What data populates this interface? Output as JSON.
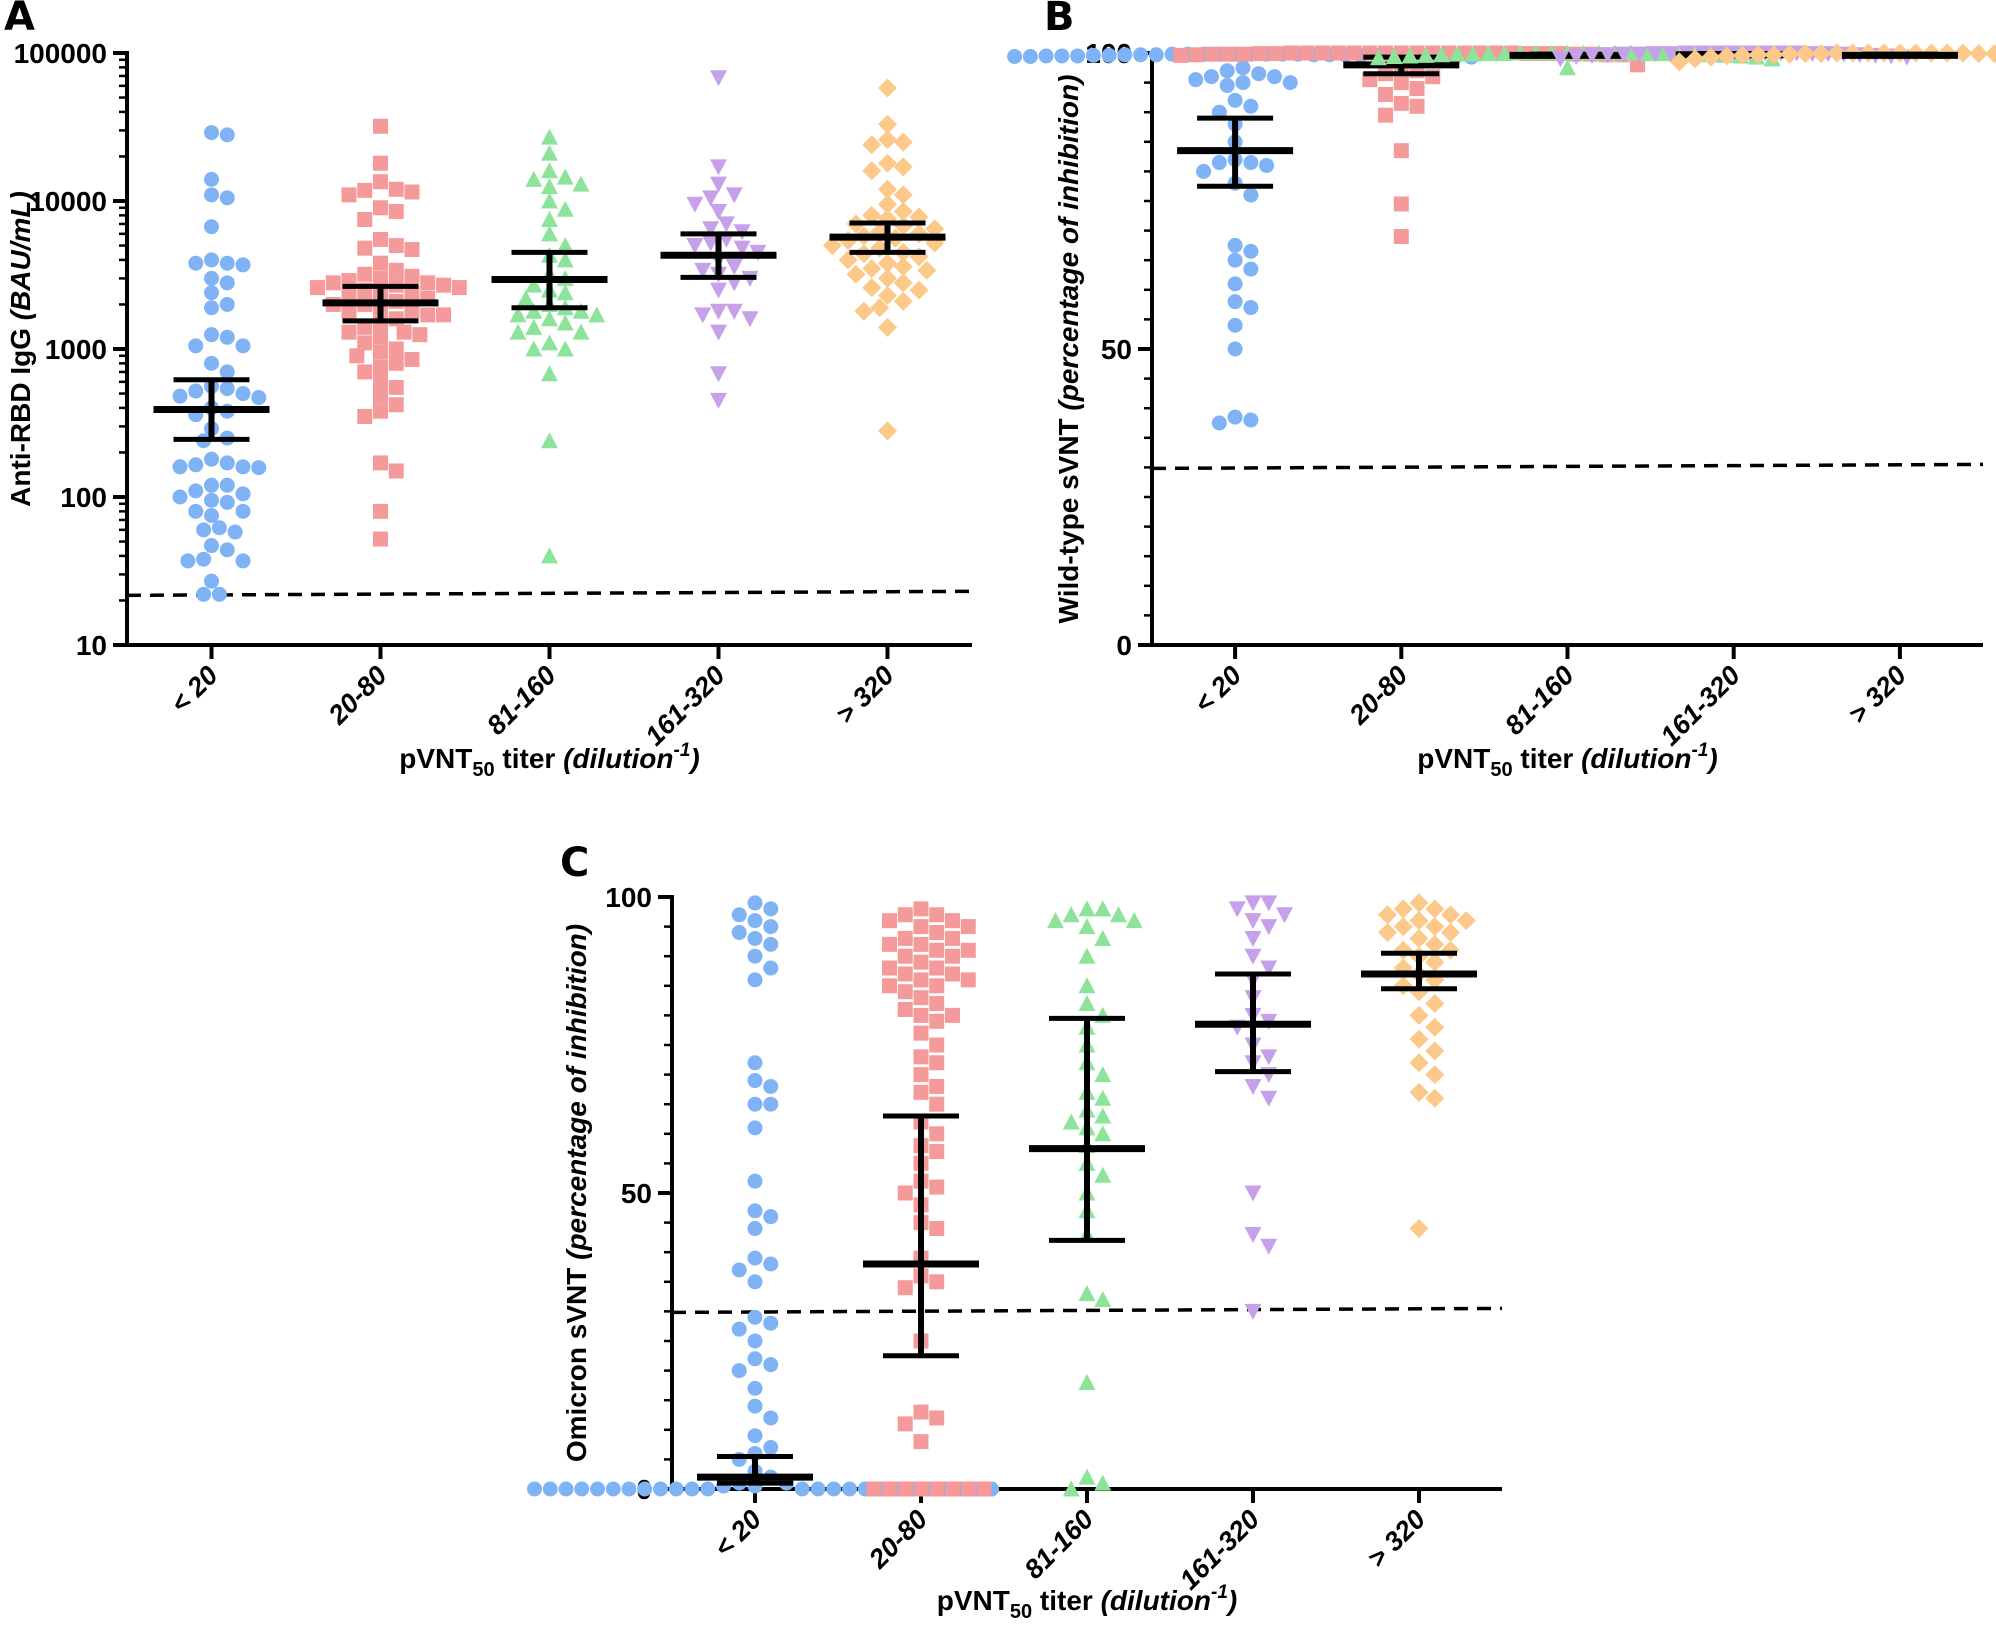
{
  "chart_data": [
    {
      "type": "scatter",
      "panel": "A",
      "ylabel_main": "Anti-RBD IgG ",
      "ylabel_italic": "(BAU/mL)",
      "xlabel": {
        "main": "pVNT",
        "sub": "50",
        "mid": " titer ",
        "italic": "(dilution",
        "sup": "-1",
        "close": ")"
      },
      "categories": [
        "< 20",
        "20-80",
        "81-160",
        "161-320",
        "> 320"
      ],
      "yscale": "log",
      "ylim": [
        10,
        100000
      ],
      "yticks": [
        "10",
        "100",
        "1000",
        "10000",
        "100000"
      ],
      "cutoff": 22,
      "grid": false,
      "series": [
        {
          "color": "#7fb3f5",
          "marker": "circle",
          "median": 390,
          "ci": [
            245,
            620
          ],
          "values": [
            29000,
            28000,
            14000,
            11000,
            10500,
            6700,
            4000,
            3800,
            3800,
            3700,
            3000,
            2800,
            2400,
            2000,
            1900,
            1250,
            1200,
            1050,
            1050,
            800,
            700,
            560,
            540,
            520,
            500,
            480,
            470,
            400,
            380,
            360,
            290,
            250,
            240,
            180,
            170,
            165,
            160,
            160,
            158,
            120,
            120,
            110,
            105,
            100,
            95,
            92,
            80,
            80,
            75,
            62,
            60,
            58,
            47,
            44,
            38,
            37,
            37,
            27,
            22,
            22
          ]
        },
        {
          "color": "#f59a9a",
          "marker": "square",
          "median": 2050,
          "ci": [
            1550,
            2650
          ],
          "values": [
            32000,
            18000,
            13500,
            12000,
            11800,
            11500,
            11000,
            9000,
            8500,
            7500,
            5500,
            5000,
            4800,
            4700,
            3800,
            3400,
            3200,
            3100,
            3000,
            2900,
            2800,
            2800,
            2700,
            2700,
            2600,
            2600,
            2500,
            2400,
            2400,
            2300,
            2200,
            2100,
            2000,
            2000,
            1900,
            1800,
            1800,
            1700,
            1700,
            1600,
            1500,
            1400,
            1300,
            1300,
            1250,
            1200,
            1100,
            1000,
            950,
            900,
            850,
            800,
            750,
            700,
            600,
            550,
            480,
            420,
            380,
            350,
            170,
            150,
            80,
            52
          ]
        },
        {
          "color": "#8ee39a",
          "marker": "triangle-up",
          "median": 2950,
          "ci": [
            1900,
            4500
          ],
          "values": [
            27000,
            21000,
            16000,
            14500,
            14000,
            13000,
            12500,
            10000,
            8800,
            7500,
            6000,
            5000,
            4300,
            4000,
            3200,
            3000,
            2700,
            2500,
            2400,
            2200,
            2000,
            1900,
            1800,
            1800,
            1700,
            1700,
            1600,
            1500,
            1400,
            1300,
            1300,
            1100,
            1000,
            1000,
            680,
            240,
            40
          ]
        },
        {
          "color": "#c7a0ea",
          "marker": "triangle-down",
          "median": 4300,
          "ci": [
            3050,
            6000
          ],
          "values": [
            68000,
            17000,
            13000,
            11000,
            10500,
            9500,
            8500,
            7000,
            6500,
            6200,
            5500,
            5200,
            5000,
            4800,
            4500,
            4000,
            3600,
            3400,
            3200,
            3000,
            2800,
            2500,
            1800,
            1800,
            1700,
            1600,
            1300,
            680,
            450
          ]
        },
        {
          "color": "#fcc98a",
          "marker": "diamond",
          "median": 5700,
          "ci": [
            4500,
            7100
          ],
          "values": [
            58000,
            33000,
            26000,
            25000,
            24000,
            18000,
            17000,
            16000,
            12000,
            11000,
            9500,
            8500,
            8000,
            7800,
            7600,
            7000,
            6800,
            6500,
            6200,
            6000,
            5800,
            5600,
            5400,
            5200,
            5000,
            4800,
            4500,
            4400,
            4200,
            4000,
            3800,
            3600,
            3500,
            3400,
            3200,
            3000,
            2800,
            2600,
            2500,
            2300,
            2100,
            1900,
            1800,
            1400,
            280
          ]
        }
      ]
    },
    {
      "type": "scatter",
      "panel": "B",
      "ylabel_main": "Wild-type sVNT ",
      "ylabel_italic": "(percentage of inhibition)",
      "xlabel": {
        "main": "pVNT",
        "sub": "50",
        "mid": " titer ",
        "italic": "(dilution",
        "sup": "-1",
        "close": ")"
      },
      "categories": [
        "< 20",
        "20-80",
        "81-160",
        "161-320",
        "> 320"
      ],
      "yscale": "linear",
      "ylim": [
        0,
        100
      ],
      "yticks": [
        "0",
        "50",
        "100"
      ],
      "cutoff": 30,
      "grid": false,
      "series": [
        {
          "color": "#7fb3f5",
          "marker": "circle",
          "median": 83.5,
          "ci": [
            77.5,
            89
          ],
          "values": [
            99.8,
            99.8,
            99.8,
            99.8,
            99.8,
            99.8,
            99.8,
            99.8,
            99.8,
            99.7,
            99.7,
            99.7,
            99.7,
            99.7,
            99.7,
            99.6,
            99.6,
            99.6,
            99.6,
            99.6,
            99.5,
            99.5,
            99.5,
            99.5,
            99.5,
            99.5,
            99.4,
            99.4,
            99.4,
            99.3,
            97.5,
            97,
            96.5,
            96,
            96,
            95.5,
            95,
            95,
            94.5,
            92,
            91,
            90,
            88,
            85,
            82,
            81.5,
            81.5,
            81,
            80,
            78,
            76,
            67.5,
            66.5,
            65,
            63.5,
            61,
            58,
            57,
            54,
            50,
            38.5,
            38,
            37.5
          ]
        },
        {
          "color": "#f59a9a",
          "marker": "square",
          "median": 98,
          "ci": [
            96.5,
            99.3
          ],
          "values": [
            100,
            100,
            100,
            100,
            100,
            100,
            100,
            100,
            100,
            100,
            100,
            100,
            100,
            100,
            100,
            99.9,
            99.9,
            99.9,
            99.9,
            99.9,
            99.8,
            99.8,
            99.8,
            99.8,
            99.8,
            99.7,
            99.7,
            99.7,
            99.6,
            99.6,
            99.5,
            99.5,
            99.4,
            99.3,
            99.2,
            99,
            98.8,
            98.5,
            98,
            97.5,
            97,
            96.5,
            96,
            95.5,
            95,
            94,
            93,
            91.5,
            91,
            89.5,
            83.5,
            74.5,
            69
          ]
        },
        {
          "color": "#8ee39a",
          "marker": "triangle-up",
          "median": 99.6,
          "ci": [
            99.5,
            99.8
          ],
          "values": [
            100,
            100,
            100,
            100,
            100,
            100,
            100,
            100,
            99.9,
            99.9,
            99.9,
            99.9,
            99.8,
            99.8,
            99.8,
            99.7,
            99.7,
            99.7,
            99.6,
            99.6,
            99.5,
            99.5,
            99.4,
            99.3,
            99.2,
            99,
            97.5
          ]
        },
        {
          "color": "#c7a0ea",
          "marker": "triangle-down",
          "median": 99.7,
          "ci": [
            99.6,
            99.9
          ],
          "values": [
            100,
            100,
            100,
            100,
            100,
            100,
            100,
            100,
            99.9,
            99.9,
            99.9,
            99.9,
            99.8,
            99.8,
            99.8,
            99.7,
            99.7,
            99.6,
            99.6,
            99.5,
            99.4,
            99.3,
            99
          ]
        },
        {
          "color": "#fcc98a",
          "marker": "diamond",
          "median": 99.6,
          "ci": [
            99.5,
            99.8
          ],
          "values": [
            100,
            100,
            100,
            100,
            100,
            100,
            100,
            100,
            100,
            99.9,
            99.9,
            99.9,
            99.9,
            99.8,
            99.8,
            99.8,
            99.7,
            99.7,
            99.7,
            99.6,
            99.6,
            99.5,
            99.5,
            99.4,
            99.3,
            99.2,
            99,
            98.8,
            98.5
          ]
        }
      ]
    },
    {
      "type": "scatter",
      "panel": "C",
      "ylabel_main": "Omicron sVNT ",
      "ylabel_italic": "(percentage of inhibition)",
      "xlabel": {
        "main": "pVNT",
        "sub": "50",
        "mid": " titer ",
        "italic": "(dilution",
        "sup": "-1",
        "close": ")"
      },
      "categories": [
        "< 20",
        "20-80",
        "81-160",
        "161-320",
        "> 320"
      ],
      "yscale": "linear",
      "ylim": [
        0,
        100
      ],
      "yticks": [
        "0",
        "50",
        "100"
      ],
      "cutoff": 30,
      "grid": false,
      "series": [
        {
          "color": "#7fb3f5",
          "marker": "circle",
          "median": 2,
          "ci": [
            1,
            5.5
          ],
          "values": [
            0,
            0,
            0,
            0,
            0,
            0,
            0,
            0,
            0,
            0,
            0,
            0,
            0,
            0,
            0,
            0,
            0,
            0,
            0,
            0,
            0,
            0,
            0,
            0,
            0,
            0,
            0,
            0,
            0,
            0,
            0.5,
            0.5,
            1,
            1,
            2,
            3,
            5,
            6,
            7,
            9,
            12,
            14,
            17,
            20,
            21,
            22,
            25,
            27,
            28,
            29,
            35,
            37,
            38,
            39,
            44,
            46,
            47,
            52,
            61,
            65,
            65,
            68,
            69,
            72,
            86,
            88,
            90,
            92,
            93,
            94,
            95,
            96,
            97,
            98,
            99
          ]
        },
        {
          "color": "#f59a9a",
          "marker": "square",
          "median": 38,
          "ci": [
            22.5,
            63
          ],
          "values": [
            0,
            0,
            0,
            0,
            0,
            0,
            0,
            0,
            8,
            11,
            12,
            13,
            25,
            34,
            35,
            36,
            39,
            44,
            45,
            48,
            50,
            51,
            52,
            55,
            57,
            58,
            60,
            62,
            65,
            67,
            68,
            70,
            72,
            73,
            75,
            77,
            79,
            80,
            80,
            81,
            82,
            83,
            84,
            85,
            85,
            86,
            86,
            87,
            87,
            88,
            88,
            89,
            90,
            90,
            91,
            91,
            92,
            92,
            93,
            93,
            94,
            95,
            95,
            96,
            96,
            97,
            97,
            98
          ]
        },
        {
          "color": "#8ee39a",
          "marker": "triangle-up",
          "median": 57.5,
          "ci": [
            42,
            79.5
          ],
          "values": [
            0,
            1,
            2,
            18,
            32,
            33,
            43,
            47,
            50,
            53,
            55,
            58,
            60,
            61,
            62,
            63,
            64,
            66,
            67,
            70,
            72,
            75,
            78,
            80,
            82,
            85,
            90,
            93,
            95,
            96,
            96,
            97,
            97,
            98,
            98
          ]
        },
        {
          "color": "#c7a0ea",
          "marker": "triangle-down",
          "median": 78.5,
          "ci": [
            70.5,
            87
          ],
          "values": [
            30,
            41,
            43,
            50,
            66,
            68,
            70,
            72,
            73,
            75,
            78,
            79,
            80,
            83,
            86,
            88,
            90,
            93,
            95,
            96,
            97,
            98,
            99,
            99
          ]
        },
        {
          "color": "#fcc98a",
          "marker": "diamond",
          "median": 87,
          "ci": [
            84.5,
            90.5
          ],
          "values": [
            44,
            66,
            67,
            70,
            72,
            74,
            76,
            78,
            80,
            82,
            84,
            85,
            86,
            87,
            88,
            89,
            90,
            91,
            91,
            92,
            93,
            94,
            94,
            95,
            95,
            96,
            96,
            97,
            97,
            98,
            98,
            99
          ]
        }
      ]
    }
  ]
}
